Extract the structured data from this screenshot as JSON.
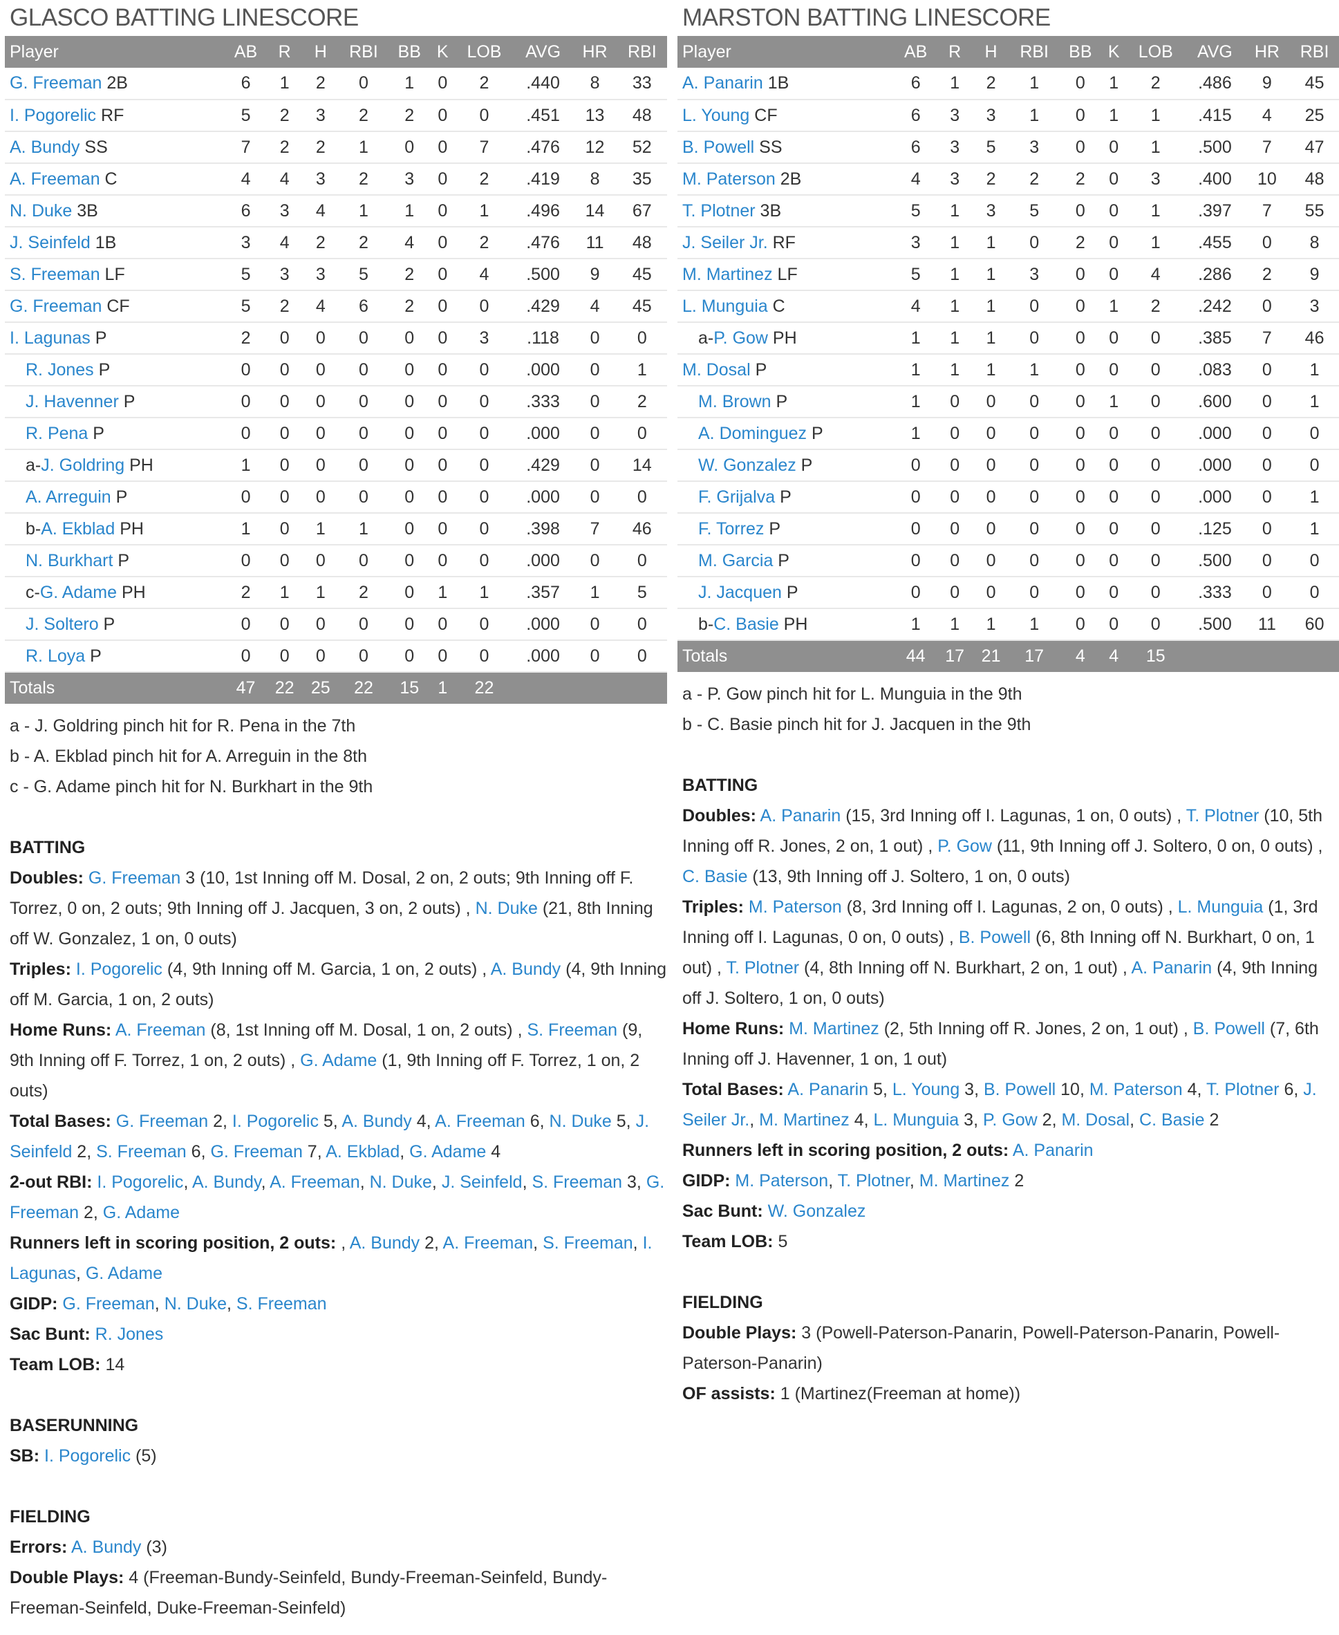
{
  "colors": {
    "link": "#2a86cc",
    "header_bg": "#8f8f8f",
    "text": "#333333"
  },
  "teams": [
    {
      "title": "GLASCO BATTING LINESCORE",
      "headers": [
        "Player",
        "AB",
        "R",
        "H",
        "RBI",
        "BB",
        "K",
        "LOB",
        "AVG",
        "HR",
        "RBI"
      ],
      "rows": [
        {
          "name": "G. Freeman",
          "pos": " 2B",
          "stats": [
            "6",
            "1",
            "2",
            "0",
            "1",
            "0",
            "2",
            ".440",
            "8",
            "33"
          ]
        },
        {
          "name": "I. Pogorelic",
          "pos": " RF",
          "stats": [
            "5",
            "2",
            "3",
            "2",
            "2",
            "0",
            "0",
            ".451",
            "13",
            "48"
          ]
        },
        {
          "name": "A. Bundy",
          "pos": " SS",
          "stats": [
            "7",
            "2",
            "2",
            "1",
            "0",
            "0",
            "7",
            ".476",
            "12",
            "52"
          ]
        },
        {
          "name": "A. Freeman",
          "pos": " C",
          "stats": [
            "4",
            "4",
            "3",
            "2",
            "3",
            "0",
            "2",
            ".419",
            "8",
            "35"
          ]
        },
        {
          "name": "N. Duke",
          "pos": " 3B",
          "stats": [
            "6",
            "3",
            "4",
            "1",
            "1",
            "0",
            "1",
            ".496",
            "14",
            "67"
          ]
        },
        {
          "name": "J. Seinfeld",
          "pos": " 1B",
          "stats": [
            "3",
            "4",
            "2",
            "2",
            "4",
            "0",
            "2",
            ".476",
            "11",
            "48"
          ]
        },
        {
          "name": "S. Freeman",
          "pos": " LF",
          "stats": [
            "5",
            "3",
            "3",
            "5",
            "2",
            "0",
            "4",
            ".500",
            "9",
            "45"
          ]
        },
        {
          "name": "G. Freeman",
          "pos": " CF",
          "stats": [
            "5",
            "2",
            "4",
            "6",
            "2",
            "0",
            "0",
            ".429",
            "4",
            "45"
          ]
        },
        {
          "name": "I. Lagunas",
          "pos": " P",
          "stats": [
            "2",
            "0",
            "0",
            "0",
            "0",
            "0",
            "3",
            ".118",
            "0",
            "0"
          ]
        },
        {
          "indent": true,
          "name": "R. Jones",
          "pos": " P",
          "stats": [
            "0",
            "0",
            "0",
            "0",
            "0",
            "0",
            "0",
            ".000",
            "0",
            "1"
          ]
        },
        {
          "indent": true,
          "name": "J. Havenner",
          "pos": " P",
          "stats": [
            "0",
            "0",
            "0",
            "0",
            "0",
            "0",
            "0",
            ".333",
            "0",
            "2"
          ]
        },
        {
          "indent": true,
          "name": "R. Pena",
          "pos": " P",
          "stats": [
            "0",
            "0",
            "0",
            "0",
            "0",
            "0",
            "0",
            ".000",
            "0",
            "0"
          ]
        },
        {
          "indent": true,
          "pre": "a-",
          "name": "J. Goldring",
          "pos": " PH",
          "stats": [
            "1",
            "0",
            "0",
            "0",
            "0",
            "0",
            "0",
            ".429",
            "0",
            "14"
          ]
        },
        {
          "indent": true,
          "name": "A. Arreguin",
          "pos": " P",
          "stats": [
            "0",
            "0",
            "0",
            "0",
            "0",
            "0",
            "0",
            ".000",
            "0",
            "0"
          ]
        },
        {
          "indent": true,
          "pre": "b-",
          "name": "A. Ekblad",
          "pos": " PH",
          "stats": [
            "1",
            "0",
            "1",
            "1",
            "0",
            "0",
            "0",
            ".398",
            "7",
            "46"
          ]
        },
        {
          "indent": true,
          "name": "N. Burkhart",
          "pos": " P",
          "stats": [
            "0",
            "0",
            "0",
            "0",
            "0",
            "0",
            "0",
            ".000",
            "0",
            "0"
          ]
        },
        {
          "indent": true,
          "pre": "c-",
          "name": "G. Adame",
          "pos": " PH",
          "stats": [
            "2",
            "1",
            "1",
            "2",
            "0",
            "1",
            "1",
            ".357",
            "1",
            "5"
          ]
        },
        {
          "indent": true,
          "name": "J. Soltero",
          "pos": " P",
          "stats": [
            "0",
            "0",
            "0",
            "0",
            "0",
            "0",
            "0",
            ".000",
            "0",
            "0"
          ]
        },
        {
          "indent": true,
          "name": "R. Loya",
          "pos": " P",
          "stats": [
            "0",
            "0",
            "0",
            "0",
            "0",
            "0",
            "0",
            ".000",
            "0",
            "0"
          ]
        }
      ],
      "totals": [
        "Totals",
        "47",
        "22",
        "25",
        "22",
        "15",
        "1",
        "22",
        "",
        "",
        ""
      ],
      "notes": [
        "a - J. Goldring pinch hit for R. Pena in the 7th",
        "b - A. Ekblad pinch hit for A. Arreguin in the 8th",
        "c - G. Adame pinch hit for N. Burkhart in the 9th"
      ],
      "sections": [
        {
          "title": "BATTING",
          "items": [
            {
              "label": "Doubles:",
              "text": " [G. Freeman] 3 (10, 1st Inning off M. Dosal, 2 on, 2 outs; 9th Inning off F. Torrez, 0 on, 2 outs; 9th Inning off J. Jacquen, 3 on, 2 outs) , [N. Duke] (21, 8th Inning off W. Gonzalez, 1 on, 0 outs)"
            },
            {
              "label": "Triples:",
              "text": " [I. Pogorelic] (4, 9th Inning off M. Garcia, 1 on, 2 outs) , [A. Bundy] (4, 9th Inning off M. Garcia, 1 on, 2 outs)"
            },
            {
              "label": "Home Runs:",
              "text": " [A. Freeman] (8, 1st Inning off M. Dosal, 1 on, 2 outs) , [S. Freeman] (9, 9th Inning off F. Torrez, 1 on, 2 outs) , [G. Adame] (1, 9th Inning off F. Torrez, 1 on, 2 outs)"
            },
            {
              "label": "Total Bases:",
              "text": " [G. Freeman] 2, [I. Pogorelic] 5, [A. Bundy] 4, [A. Freeman] 6, [N. Duke] 5, [J. Seinfeld] 2, [S. Freeman] 6, [G. Freeman] 7, [A. Ekblad], [G. Adame] 4"
            },
            {
              "label": "2-out RBI:",
              "text": " [I. Pogorelic], [A. Bundy], [A. Freeman], [N. Duke], [J. Seinfeld], [S. Freeman] 3, [G. Freeman] 2, [G. Adame]"
            },
            {
              "label": "Runners left in scoring position, 2 outs:",
              "text": " , [A. Bundy] 2, [A. Freeman], [S. Freeman], [I. Lagunas], [G. Adame]"
            },
            {
              "label": "GIDP:",
              "text": " [G. Freeman], [N. Duke], [S. Freeman]"
            },
            {
              "label": "Sac Bunt:",
              "text": " [R. Jones]"
            },
            {
              "label": "Team LOB:",
              "text": " 14"
            }
          ]
        },
        {
          "title": "BASERUNNING",
          "items": [
            {
              "label": "SB:",
              "text": " [I. Pogorelic] (5)"
            }
          ]
        },
        {
          "title": "FIELDING",
          "items": [
            {
              "label": "Errors:",
              "text": " [A. Bundy] (3)"
            },
            {
              "label": "Double Plays:",
              "text": " 4 (Freeman-Bundy-Seinfeld, Bundy-Freeman-Seinfeld, Bundy-Freeman-Seinfeld, Duke-Freeman-Seinfeld)"
            }
          ]
        }
      ]
    },
    {
      "title": "MARSTON BATTING LINESCORE",
      "headers": [
        "Player",
        "AB",
        "R",
        "H",
        "RBI",
        "BB",
        "K",
        "LOB",
        "AVG",
        "HR",
        "RBI"
      ],
      "rows": [
        {
          "name": "A. Panarin",
          "pos": " 1B",
          "stats": [
            "6",
            "1",
            "2",
            "1",
            "0",
            "1",
            "2",
            ".486",
            "9",
            "45"
          ]
        },
        {
          "name": "L. Young",
          "pos": " CF",
          "stats": [
            "6",
            "3",
            "3",
            "1",
            "0",
            "1",
            "1",
            ".415",
            "4",
            "25"
          ]
        },
        {
          "name": "B. Powell",
          "pos": " SS",
          "stats": [
            "6",
            "3",
            "5",
            "3",
            "0",
            "0",
            "1",
            ".500",
            "7",
            "47"
          ]
        },
        {
          "name": "M. Paterson",
          "pos": " 2B",
          "stats": [
            "4",
            "3",
            "2",
            "2",
            "2",
            "0",
            "3",
            ".400",
            "10",
            "48"
          ]
        },
        {
          "name": "T. Plotner",
          "pos": " 3B",
          "stats": [
            "5",
            "1",
            "3",
            "5",
            "0",
            "0",
            "1",
            ".397",
            "7",
            "55"
          ]
        },
        {
          "name": "J. Seiler Jr.",
          "pos": " RF",
          "stats": [
            "3",
            "1",
            "1",
            "0",
            "2",
            "0",
            "1",
            ".455",
            "0",
            "8"
          ]
        },
        {
          "name": "M. Martinez",
          "pos": " LF",
          "stats": [
            "5",
            "1",
            "1",
            "3",
            "0",
            "0",
            "4",
            ".286",
            "2",
            "9"
          ]
        },
        {
          "name": "L. Munguia",
          "pos": " C",
          "stats": [
            "4",
            "1",
            "1",
            "0",
            "0",
            "1",
            "2",
            ".242",
            "0",
            "3"
          ]
        },
        {
          "indent": true,
          "pre": "a-",
          "name": "P. Gow",
          "pos": " PH",
          "stats": [
            "1",
            "1",
            "1",
            "0",
            "0",
            "0",
            "0",
            ".385",
            "7",
            "46"
          ]
        },
        {
          "name": "M. Dosal",
          "pos": " P",
          "stats": [
            "1",
            "1",
            "1",
            "1",
            "0",
            "0",
            "0",
            ".083",
            "0",
            "1"
          ]
        },
        {
          "indent": true,
          "name": "M. Brown",
          "pos": " P",
          "stats": [
            "1",
            "0",
            "0",
            "0",
            "0",
            "1",
            "0",
            ".600",
            "0",
            "1"
          ]
        },
        {
          "indent": true,
          "name": "A. Dominguez",
          "pos": " P",
          "stats": [
            "1",
            "0",
            "0",
            "0",
            "0",
            "0",
            "0",
            ".000",
            "0",
            "0"
          ]
        },
        {
          "indent": true,
          "name": "W. Gonzalez",
          "pos": " P",
          "stats": [
            "0",
            "0",
            "0",
            "0",
            "0",
            "0",
            "0",
            ".000",
            "0",
            "0"
          ]
        },
        {
          "indent": true,
          "name": "F. Grijalva",
          "pos": " P",
          "stats": [
            "0",
            "0",
            "0",
            "0",
            "0",
            "0",
            "0",
            ".000",
            "0",
            "1"
          ]
        },
        {
          "indent": true,
          "name": "F. Torrez",
          "pos": " P",
          "stats": [
            "0",
            "0",
            "0",
            "0",
            "0",
            "0",
            "0",
            ".125",
            "0",
            "1"
          ]
        },
        {
          "indent": true,
          "name": "M. Garcia",
          "pos": " P",
          "stats": [
            "0",
            "0",
            "0",
            "0",
            "0",
            "0",
            "0",
            ".500",
            "0",
            "0"
          ]
        },
        {
          "indent": true,
          "name": "J. Jacquen",
          "pos": " P",
          "stats": [
            "0",
            "0",
            "0",
            "0",
            "0",
            "0",
            "0",
            ".333",
            "0",
            "0"
          ]
        },
        {
          "indent": true,
          "pre": "b-",
          "name": "C. Basie",
          "pos": " PH",
          "stats": [
            "1",
            "1",
            "1",
            "1",
            "0",
            "0",
            "0",
            ".500",
            "11",
            "60"
          ]
        }
      ],
      "totals": [
        "Totals",
        "44",
        "17",
        "21",
        "17",
        "4",
        "4",
        "15",
        "",
        "",
        ""
      ],
      "notes": [
        "a - P. Gow pinch hit for L. Munguia in the 9th",
        "b - C. Basie pinch hit for J. Jacquen in the 9th"
      ],
      "sections": [
        {
          "title": "BATTING",
          "items": [
            {
              "label": "Doubles:",
              "text": " [A. Panarin] (15, 3rd Inning off I. Lagunas, 1 on, 0 outs) , [T. Plotner] (10, 5th Inning off R. Jones, 2 on, 1 out) , [P. Gow] (11, 9th Inning off J. Soltero, 0 on, 0 outs) , [C. Basie] (13, 9th Inning off J. Soltero, 1 on, 0 outs)"
            },
            {
              "label": "Triples:",
              "text": " [M. Paterson] (8, 3rd Inning off I. Lagunas, 2 on, 0 outs) , [L. Munguia] (1, 3rd Inning off I. Lagunas, 0 on, 0 outs) , [B. Powell] (6, 8th Inning off N. Burkhart, 0 on, 1 out) , [T. Plotner] (4, 8th Inning off N. Burkhart, 2 on, 1 out) , [A. Panarin] (4, 9th Inning off J. Soltero, 1 on, 0 outs)"
            },
            {
              "label": "Home Runs:",
              "text": " [M. Martinez] (2, 5th Inning off R. Jones, 2 on, 1 out) , [B. Powell] (7, 6th Inning off J. Havenner, 1 on, 1 out)"
            },
            {
              "label": "Total Bases:",
              "text": " [A. Panarin] 5, [L. Young] 3, [B. Powell] 10, [M. Paterson] 4, [T. Plotner] 6, [J. Seiler Jr.], [M. Martinez] 4, [L. Munguia] 3, [P. Gow] 2, [M. Dosal], [C. Basie] 2"
            },
            {
              "label": "Runners left in scoring position, 2 outs:",
              "text": " [A. Panarin]"
            },
            {
              "label": "GIDP:",
              "text": " [M. Paterson], [T. Plotner], [M. Martinez] 2"
            },
            {
              "label": "Sac Bunt:",
              "text": " [W. Gonzalez]"
            },
            {
              "label": "Team LOB:",
              "text": " 5"
            }
          ]
        },
        {
          "title": "FIELDING",
          "items": [
            {
              "label": "Double Plays:",
              "text": " 3 (Powell-Paterson-Panarin, Powell-Paterson-Panarin, Powell-Paterson-Panarin)"
            },
            {
              "label": "OF assists:",
              "text": " 1 (Martinez(Freeman at home))"
            }
          ]
        }
      ]
    }
  ]
}
